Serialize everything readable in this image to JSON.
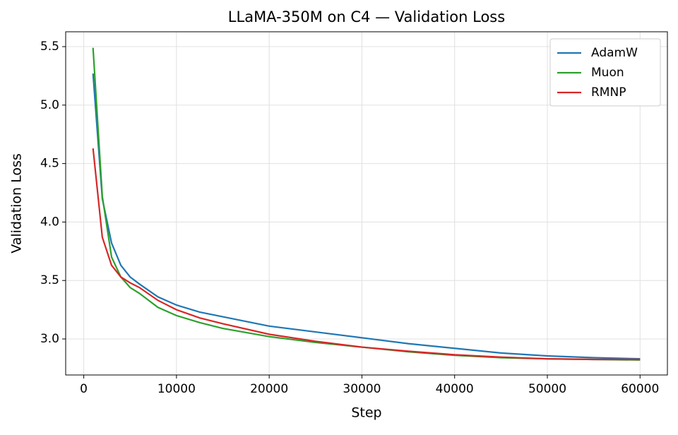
{
  "chart_data": {
    "type": "line",
    "title": "LLaMA-350M on C4 — Validation Loss",
    "x_label": "Step",
    "y_label": "Validation Loss",
    "x": [
      1000,
      2000,
      3000,
      4000,
      5000,
      6000,
      8000,
      10000,
      12500,
      15000,
      20000,
      25000,
      30000,
      35000,
      40000,
      45000,
      50000,
      55000,
      60000
    ],
    "series": [
      {
        "name": "AdamW",
        "color": "#1f77b4",
        "values": [
          5.27,
          4.2,
          3.82,
          3.63,
          3.53,
          3.47,
          3.36,
          3.29,
          3.23,
          3.19,
          3.11,
          3.06,
          3.01,
          2.96,
          2.92,
          2.88,
          2.855,
          2.84,
          2.83
        ]
      },
      {
        "name": "Muon",
        "color": "#2ca02c",
        "values": [
          5.49,
          4.22,
          3.7,
          3.53,
          3.44,
          3.39,
          3.27,
          3.2,
          3.14,
          3.09,
          3.02,
          2.97,
          2.93,
          2.89,
          2.86,
          2.84,
          2.83,
          2.825,
          2.82
        ]
      },
      {
        "name": "RMNP",
        "color": "#d62728",
        "values": [
          4.63,
          3.87,
          3.63,
          3.53,
          3.48,
          3.44,
          3.33,
          3.25,
          3.18,
          3.13,
          3.04,
          2.98,
          2.93,
          2.895,
          2.865,
          2.845,
          2.83,
          2.825,
          2.825
        ]
      }
    ],
    "xlim": [
      -1950,
      62950
    ],
    "ylim": [
      2.692,
      5.627
    ],
    "xticks": [
      0,
      10000,
      20000,
      30000,
      40000,
      50000,
      60000
    ],
    "yticks": [
      {
        "value": 3.0,
        "label": "3.0"
      },
      3.5,
      {
        "value": 4.0,
        "label": "4.0"
      },
      4.5,
      {
        "value": 5.0,
        "label": "5.0"
      },
      5.5
    ],
    "grid": true,
    "legend": "upper right"
  }
}
